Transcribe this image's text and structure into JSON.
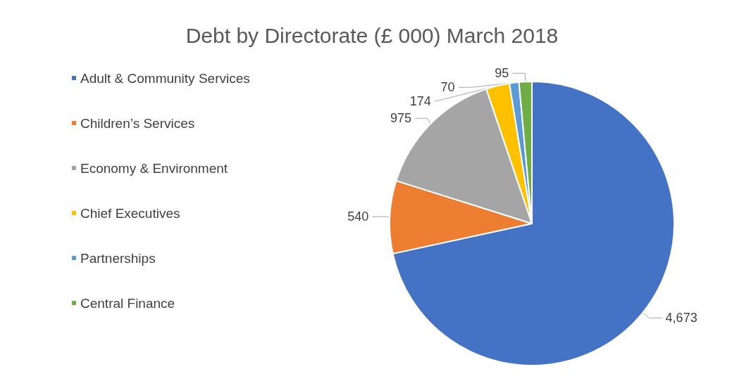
{
  "chart_data": {
    "type": "pie",
    "title": "Debt by Directorate (£ 000) March 2018",
    "categories": [
      "Adult & Community Services",
      "Children’s Services",
      "Economy & Environment",
      "Chief Executives",
      "Partnerships",
      "Central Finance"
    ],
    "values": [
      4673,
      540,
      975,
      174,
      70,
      95
    ],
    "colors": [
      "#4472c4",
      "#ed7d31",
      "#a5a5a5",
      "#ffc000",
      "#5b9bd5",
      "#70ad47"
    ],
    "value_labels": [
      "4,673",
      "540",
      "975",
      "174",
      "70",
      "95"
    ],
    "legend": "left"
  }
}
